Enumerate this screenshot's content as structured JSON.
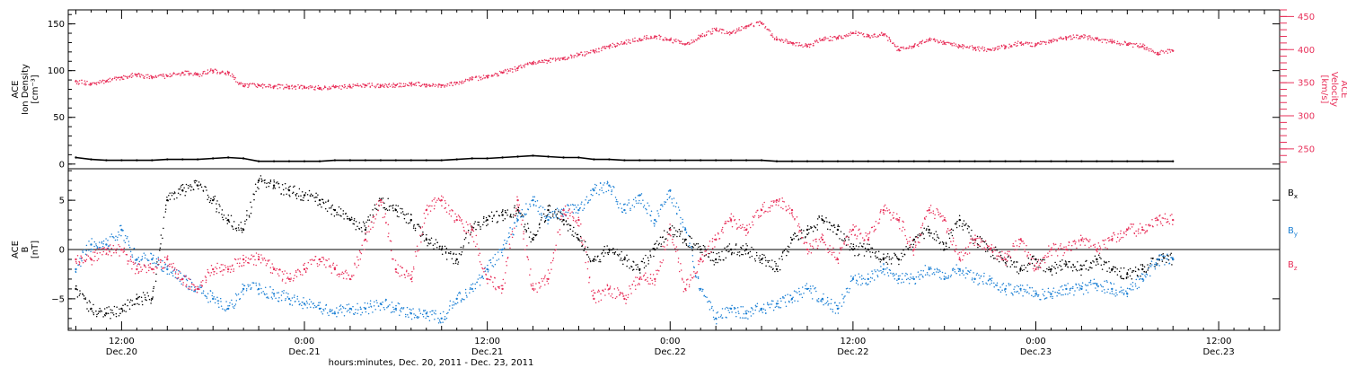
{
  "colors": {
    "black": "#000000",
    "pink": "#e8305a",
    "blue": "#1a7fd4"
  },
  "chart_data": [
    {
      "type": "scatter",
      "panel": "top",
      "ylabel_lines": [
        "ACE",
        "Ion Density",
        "[cm⁻³]"
      ],
      "ylabel_right_lines": [
        "ACE",
        "Velocity",
        "[km/s]"
      ],
      "ylim": [
        -5,
        165
      ],
      "ylim_right": [
        220,
        460
      ],
      "yticks": [
        0,
        50,
        100,
        150
      ],
      "yticks_right": [
        250,
        300,
        350,
        400,
        450
      ],
      "series": [
        {
          "axis": "left",
          "color": "#000000",
          "x": [
            9,
            10,
            11,
            12,
            13,
            14,
            15,
            16,
            17,
            18,
            19,
            20,
            21,
            22,
            23,
            24,
            25,
            26,
            27,
            28,
            29,
            30,
            31,
            32,
            33,
            34,
            35,
            36,
            37,
            38,
            39,
            40,
            41,
            42,
            43,
            44,
            45,
            46,
            47,
            48,
            49,
            50,
            51,
            52,
            53,
            54,
            55,
            56,
            57,
            58,
            59,
            60,
            61,
            62,
            63,
            64,
            65,
            66,
            67,
            68,
            69,
            70,
            71,
            72,
            73,
            74,
            75,
            76,
            77,
            78,
            79,
            80,
            81
          ],
          "y": [
            7,
            5,
            4,
            4,
            4,
            4,
            5,
            5,
            5,
            6,
            7,
            6,
            3,
            3,
            3,
            3,
            3,
            4,
            4,
            4,
            4,
            4,
            4,
            4,
            4,
            5,
            6,
            6,
            7,
            8,
            9,
            8,
            7,
            7,
            5,
            5,
            4,
            4,
            4,
            4,
            4,
            4,
            4,
            4,
            4,
            4,
            3,
            3,
            3,
            3,
            3,
            3,
            3,
            3,
            3,
            3,
            3,
            3,
            3,
            3,
            3,
            3,
            3,
            3,
            3,
            3,
            3,
            3,
            3,
            3,
            3,
            3,
            3
          ]
        },
        {
          "axis": "right",
          "color": "#e8305a",
          "x": [
            9,
            10,
            11,
            12,
            13,
            14,
            15,
            16,
            17,
            18,
            19,
            20,
            21,
            22,
            23,
            24,
            25,
            26,
            27,
            28,
            29,
            30,
            31,
            32,
            33,
            34,
            35,
            36,
            37,
            38,
            39,
            40,
            41,
            42,
            43,
            44,
            45,
            46,
            47,
            48,
            49,
            50,
            51,
            52,
            53,
            54,
            55,
            56,
            57,
            58,
            59,
            60,
            61,
            62,
            63,
            64,
            65,
            66,
            67,
            68,
            69,
            70,
            71,
            72,
            73,
            74,
            75,
            76,
            77,
            78,
            79,
            80,
            81
          ],
          "y": [
            352,
            348,
            352,
            358,
            362,
            358,
            360,
            365,
            362,
            368,
            365,
            345,
            346,
            344,
            344,
            343,
            342,
            343,
            344,
            346,
            345,
            346,
            348,
            347,
            346,
            350,
            355,
            360,
            365,
            372,
            380,
            383,
            387,
            392,
            398,
            405,
            410,
            416,
            420,
            415,
            408,
            420,
            430,
            425,
            435,
            440,
            415,
            410,
            405,
            415,
            418,
            425,
            420,
            423,
            400,
            405,
            415,
            410,
            405,
            402,
            400,
            405,
            410,
            407,
            413,
            418,
            420,
            416,
            412,
            408,
            405,
            395,
            398
          ]
        }
      ]
    },
    {
      "type": "scatter",
      "panel": "bottom",
      "ylabel_lines": [
        "ACE",
        "B",
        "[nT]"
      ],
      "ylim": [
        -8.2,
        8.2
      ],
      "yticks": [
        -5,
        0,
        5
      ],
      "legend": [
        "Bx",
        "By",
        "Bz"
      ],
      "series": [
        {
          "name": "Bx",
          "color": "#000000",
          "x": [
            9,
            10,
            11,
            12,
            13,
            14,
            15,
            16,
            17,
            18,
            19,
            20,
            21,
            22,
            23,
            24,
            25,
            26,
            27,
            28,
            29,
            30,
            31,
            32,
            33,
            34,
            35,
            36,
            37,
            38,
            39,
            40,
            41,
            42,
            43,
            44,
            45,
            46,
            47,
            48,
            49,
            50,
            51,
            52,
            53,
            54,
            55,
            56,
            57,
            58,
            59,
            60,
            61,
            62,
            63,
            64,
            65,
            66,
            67,
            68,
            69,
            70,
            71,
            72,
            73,
            74,
            75,
            76,
            77,
            78,
            79,
            80,
            81
          ],
          "y": [
            -4,
            -6,
            -6.5,
            -6,
            -5,
            -5,
            5,
            6,
            6.5,
            5,
            3,
            2,
            7,
            6.5,
            6,
            5.5,
            5,
            4,
            3,
            2,
            5,
            4,
            3,
            1,
            0,
            -1,
            2,
            3,
            3.5,
            4,
            1,
            4,
            3,
            1,
            -1,
            0,
            -1,
            -2,
            0,
            2,
            1,
            0,
            -1,
            0,
            0,
            -1,
            -2,
            1,
            2,
            3,
            2,
            0,
            0,
            -1,
            -1,
            1,
            2,
            0,
            3,
            1,
            0,
            -1,
            -2,
            -1,
            -2,
            -1.5,
            -2,
            -1,
            -2,
            -2.5,
            -2,
            -1,
            -1
          ]
        },
        {
          "name": "By",
          "color": "#1a7fd4",
          "x": [
            9,
            10,
            11,
            12,
            13,
            14,
            15,
            16,
            17,
            18,
            19,
            20,
            21,
            22,
            23,
            24,
            25,
            26,
            27,
            28,
            29,
            30,
            31,
            32,
            33,
            34,
            35,
            36,
            37,
            38,
            39,
            40,
            41,
            42,
            43,
            44,
            45,
            46,
            47,
            48,
            49,
            50,
            51,
            52,
            53,
            54,
            55,
            56,
            57,
            58,
            59,
            60,
            61,
            62,
            63,
            64,
            65,
            66,
            67,
            68,
            69,
            70,
            71,
            72,
            73,
            74,
            75,
            76,
            77,
            78,
            79,
            80,
            81
          ],
          "y": [
            -2,
            0.5,
            0.5,
            2,
            -1,
            -1,
            -2,
            -3,
            -4,
            -5,
            -6,
            -4,
            -4,
            -4.5,
            -5,
            -5.5,
            -6,
            -6.5,
            -6,
            -6,
            -5.5,
            -6,
            -6.5,
            -6.5,
            -7,
            -5,
            -4,
            -2,
            0,
            3,
            5,
            3,
            4,
            4,
            6,
            6.5,
            4,
            5.5,
            3,
            6,
            2,
            -4,
            -7,
            -6,
            -6.5,
            -6,
            -5.5,
            -5,
            -4,
            -5,
            -6,
            -3,
            -3,
            -2,
            -3,
            -3,
            -2,
            -3,
            -2,
            -3,
            -3,
            -4,
            -4,
            -4.5,
            -4.5,
            -4,
            -4,
            -3.5,
            -4,
            -4.5,
            -3,
            -1,
            -1
          ]
        },
        {
          "name": "Bz",
          "color": "#e8305a",
          "x": [
            9,
            10,
            11,
            12,
            13,
            14,
            15,
            16,
            17,
            18,
            19,
            20,
            21,
            22,
            23,
            24,
            25,
            26,
            27,
            28,
            29,
            30,
            31,
            32,
            33,
            34,
            35,
            36,
            37,
            38,
            39,
            40,
            41,
            42,
            43,
            44,
            45,
            46,
            47,
            48,
            49,
            50,
            51,
            52,
            53,
            54,
            55,
            56,
            57,
            58,
            59,
            60,
            61,
            62,
            63,
            64,
            65,
            66,
            67,
            68,
            69,
            70,
            71,
            72,
            73,
            74,
            75,
            76,
            77,
            78,
            79,
            80,
            81
          ],
          "y": [
            -1,
            -1,
            0,
            0,
            -2,
            -2,
            -1,
            -3,
            -4,
            -2,
            -2,
            -1,
            -1,
            -2,
            -3,
            -2,
            -1,
            -2,
            -3,
            1,
            5,
            -2,
            -3,
            4,
            5,
            3,
            2,
            -3,
            -4,
            5,
            -4,
            -3,
            4,
            3,
            -5,
            -4,
            -5,
            -3,
            -3,
            2,
            -4,
            -1,
            1,
            3,
            2,
            4,
            5,
            4,
            0,
            1,
            -1,
            2,
            1,
            4,
            3,
            0,
            4,
            3,
            -1,
            1,
            0,
            -1,
            1,
            -2,
            0,
            0,
            1,
            0,
            1,
            2,
            2,
            3,
            3
          ]
        }
      ]
    }
  ],
  "x_axis": {
    "range": [
      8.5,
      88
    ],
    "ticks": [
      {
        "x": 12,
        "time": "12:00",
        "date": "Dec.20"
      },
      {
        "x": 24,
        "time": "0:00",
        "date": "Dec.21"
      },
      {
        "x": 36,
        "time": "12:00",
        "date": "Dec.21"
      },
      {
        "x": 48,
        "time": "0:00",
        "date": "Dec.22"
      },
      {
        "x": 60,
        "time": "12:00",
        "date": "Dec.22"
      },
      {
        "x": 72,
        "time": "0:00",
        "date": "Dec.23"
      },
      {
        "x": 84,
        "time": "12:00",
        "date": "Dec.23"
      }
    ],
    "label": "hours:minutes, Dec. 20, 2011 - Dec. 23, 2011"
  }
}
